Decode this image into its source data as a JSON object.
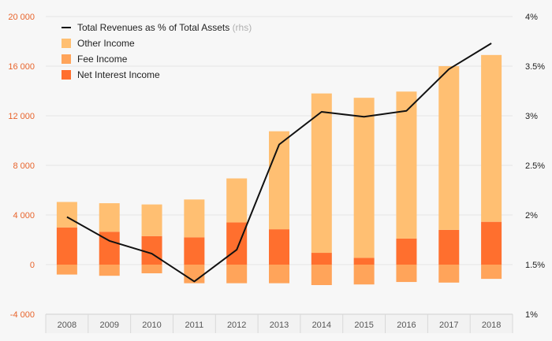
{
  "chart_data": {
    "type": "bar",
    "stacked": true,
    "categories": [
      "2008",
      "2009",
      "2010",
      "2011",
      "2012",
      "2013",
      "2014",
      "2015",
      "2016",
      "2017",
      "2018"
    ],
    "series": [
      {
        "name": "Net Interest Income",
        "color": "#ff6f2e",
        "values": [
          3000,
          2650,
          2300,
          2200,
          3400,
          2850,
          950,
          550,
          2100,
          2800,
          3450
        ]
      },
      {
        "name": "Fee Income",
        "color": "#ffa45a",
        "values": [
          -800,
          -900,
          -700,
          -1500,
          -1500,
          -1500,
          -1650,
          -1600,
          -1400,
          -1450,
          -1150
        ]
      },
      {
        "name": "Other Income",
        "color": "#ffbf72",
        "values": [
          2050,
          2300,
          2550,
          3050,
          3550,
          7900,
          12850,
          12900,
          11850,
          13200,
          13450
        ]
      }
    ],
    "line": {
      "name": "Total Revenues as % of Total Assets",
      "suffix": "(rhs)",
      "color": "#111111",
      "values": [
        1.98,
        1.74,
        1.61,
        1.33,
        1.65,
        2.71,
        3.04,
        2.99,
        3.05,
        3.47,
        3.73
      ]
    },
    "y_left": {
      "ticks": [
        20000,
        16000,
        12000,
        8000,
        4000,
        0,
        -4000
      ],
      "tick_labels": [
        "20 000",
        "16 000",
        "12 000",
        "8 000",
        "4 000",
        "0",
        "-4 000"
      ],
      "ylim": [
        -4000,
        20000
      ],
      "color": "#e8642c"
    },
    "y_right": {
      "ticks": [
        4,
        3.5,
        3,
        2.5,
        2,
        1.5,
        1
      ],
      "tick_labels": [
        "4%",
        "3.5%",
        "3%",
        "2.5%",
        "2%",
        "1.5%",
        "1%"
      ],
      "ylim": [
        1,
        4
      ]
    },
    "legend_order": [
      "line",
      "Other Income",
      "Fee Income",
      "Net Interest Income"
    ],
    "legend_position": "top-left",
    "grid": true
  }
}
